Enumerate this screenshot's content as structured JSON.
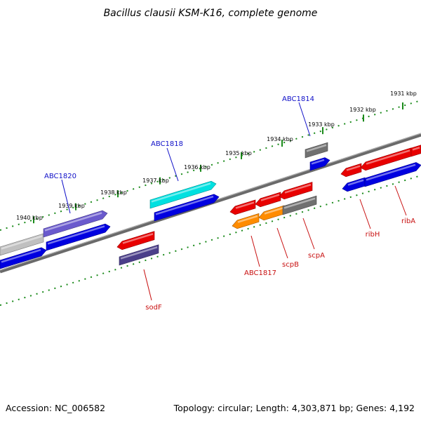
{
  "title": "Bacillus clausii KSM-K16, complete genome",
  "footer": {
    "accession": "Accession: NC_006582",
    "summary": "Topology: circular; Length: 4,303,871 bp; Genes: 4,192"
  },
  "colors": {
    "blue": "#0000e0",
    "red": "#e80000",
    "cyan": "#00e0e0",
    "violet": "#6a5acd",
    "slate": "#4b3f8a",
    "orange": "#ff8c00",
    "gray": "#707070",
    "lightgray": "#c0c0c0",
    "backbone": "#808080",
    "tick": "#1a8a1a",
    "label_blue": "#1010c8",
    "label_red": "#c81010"
  },
  "ticks": [
    {
      "label": "1931 kbp"
    },
    {
      "label": "1932 kbp"
    },
    {
      "label": "1933 kbp"
    },
    {
      "label": "1934 kbp"
    },
    {
      "label": "1935 kbp"
    },
    {
      "label": "1936 kbp"
    },
    {
      "label": "1937 kbp"
    },
    {
      "label": "1938 kbp"
    },
    {
      "label": "1939 kbp"
    },
    {
      "label": "1940 kbp"
    }
  ],
  "genes": [
    {
      "name": "ABC1820",
      "color": "violet"
    },
    {
      "name": "ABC1818",
      "color": "cyan"
    },
    {
      "name": "ABC1814",
      "color": "gray"
    },
    {
      "name": "sodF",
      "color": "slate"
    },
    {
      "name": "ABC1817",
      "color": "orange"
    },
    {
      "name": "scpB",
      "color": "orange"
    },
    {
      "name": "scpA",
      "color": "gray"
    },
    {
      "name": "ribH",
      "color": "red"
    },
    {
      "name": "ribA",
      "color": "red"
    }
  ]
}
